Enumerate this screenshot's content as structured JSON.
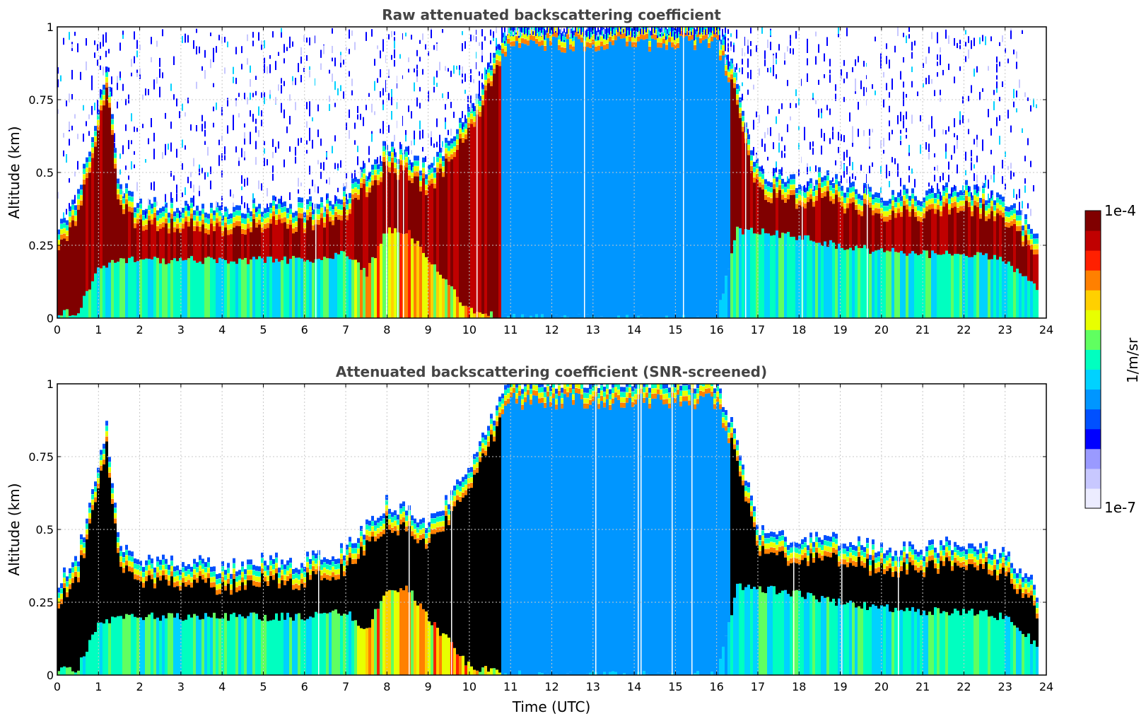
{
  "colors": {
    "background": "#ffffff",
    "axes": "#000000",
    "title_text": "#444444",
    "grid": "#c8c8c8",
    "screened_core": "#000000",
    "colormap": [
      "#ececff",
      "#c8c8ff",
      "#9a9aff",
      "#0000ff",
      "#0050ff",
      "#0096ff",
      "#00d2ff",
      "#00ffc0",
      "#60ff60",
      "#e8ff00",
      "#ffd000",
      "#ff8000",
      "#ff2000",
      "#c00000",
      "#800000"
    ]
  },
  "chart_data": [
    {
      "type": "heatmap",
      "title": "Raw attenuated backscattering coefficient",
      "xlabel": "",
      "ylabel": "Altitude (km)",
      "xlim": [
        0,
        24
      ],
      "ylim": [
        0,
        1
      ],
      "xticks": [
        "0",
        "1",
        "2",
        "3",
        "4",
        "5",
        "6",
        "7",
        "8",
        "9",
        "10",
        "11",
        "12",
        "13",
        "14",
        "15",
        "16",
        "17",
        "18",
        "19",
        "20",
        "21",
        "22",
        "23",
        "24"
      ],
      "yticks": [
        "0",
        "0.25",
        "0.5",
        "0.75",
        "1"
      ],
      "grid": true,
      "data_end_hour": 23.8,
      "layer_profile": {
        "time_utc": [
          0,
          0.5,
          1.0,
          1.2,
          1.5,
          2,
          3,
          4,
          5,
          6,
          7,
          7.5,
          8,
          8.5,
          9,
          10,
          11,
          12,
          13,
          14,
          15,
          16,
          16.5,
          17,
          18,
          18.5,
          19,
          20,
          21,
          22,
          23,
          23.8
        ],
        "layer_top_km": [
          0.3,
          0.4,
          0.7,
          0.85,
          0.45,
          0.38,
          0.38,
          0.36,
          0.38,
          0.38,
          0.42,
          0.5,
          0.58,
          0.55,
          0.5,
          0.7,
          1.0,
          1.0,
          1.0,
          1.0,
          1.0,
          1.0,
          0.8,
          0.5,
          0.45,
          0.48,
          0.45,
          0.42,
          0.42,
          0.45,
          0.4,
          0.28
        ],
        "layer_bottom_km": [
          0.02,
          0.02,
          0.18,
          0.18,
          0.2,
          0.2,
          0.2,
          0.2,
          0.2,
          0.2,
          0.22,
          0.15,
          0.3,
          0.3,
          0.2,
          0.03,
          0.0,
          0.0,
          0.0,
          0.0,
          0.0,
          0.0,
          0.3,
          0.3,
          0.28,
          0.26,
          0.25,
          0.23,
          0.22,
          0.22,
          0.2,
          0.1
        ]
      }
    },
    {
      "type": "heatmap",
      "title": "Attenuated backscattering coefficient (SNR-screened)",
      "xlabel": "Time (UTC)",
      "ylabel": "Altitude (km)",
      "xlim": [
        0,
        24
      ],
      "ylim": [
        0,
        1
      ],
      "xticks": [
        "0",
        "1",
        "2",
        "3",
        "4",
        "5",
        "6",
        "7",
        "8",
        "9",
        "10",
        "11",
        "12",
        "13",
        "14",
        "15",
        "16",
        "17",
        "18",
        "19",
        "20",
        "21",
        "22",
        "23",
        "24"
      ],
      "yticks": [
        "0",
        "0.25",
        "0.5",
        "0.75",
        "1"
      ],
      "grid": true,
      "data_end_hour": 23.8
    }
  ],
  "colorbar": {
    "label": "1/m/sr",
    "max_label": "1e-4",
    "min_label": "1e-7",
    "scale": "log",
    "range": [
      1e-07,
      0.0001
    ]
  }
}
